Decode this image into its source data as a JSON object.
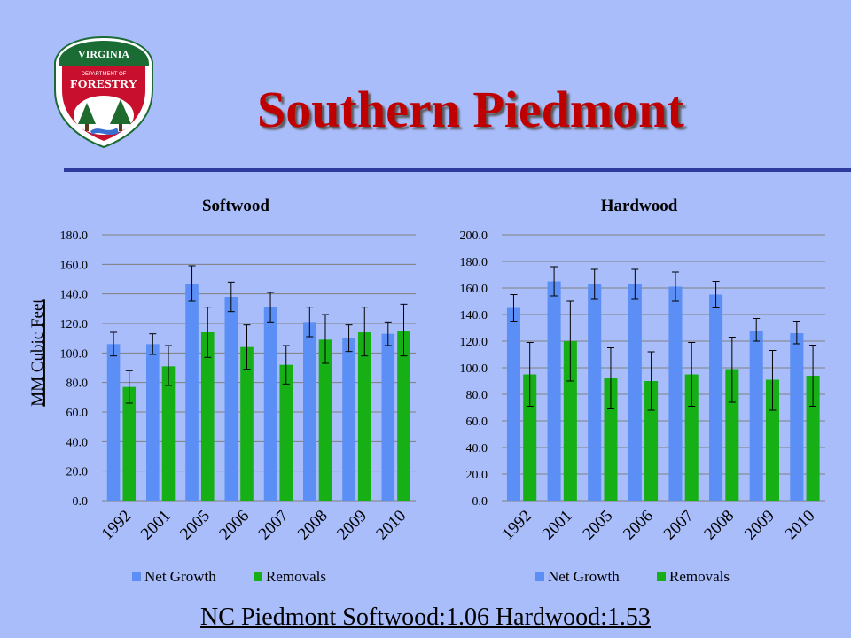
{
  "slide": {
    "title": "Southern Piedmont",
    "footer": "NC Piedmont  Softwood:1.06 Hardwood:1.53"
  },
  "logo": {
    "top_text": "VIRGINIA",
    "mid_text": "DEPARTMENT OF",
    "main_text": "FORESTRY",
    "colors": {
      "shield": "#c8102e",
      "band": "#1b6b35",
      "tree": "#1f6b2e",
      "water": "#3a6fd0"
    }
  },
  "colors": {
    "background": "#a9bdfb",
    "title": "#c00000",
    "rule": "#2e3a9c",
    "net_growth": "#5b8ff5",
    "removals": "#16b016",
    "gridline": "#7f7f7f"
  },
  "chart_data": [
    {
      "type": "bar",
      "title": "Softwood",
      "ylabel": "MM Cubic Feet",
      "xlabel": "",
      "ylim": [
        0,
        180
      ],
      "ytick_step": 20,
      "ytick_labels": [
        "0.0",
        "20.0",
        "40.0",
        "60.0",
        "80.0",
        "100.0",
        "120.0",
        "140.0",
        "160.0",
        "180.0"
      ],
      "grid": true,
      "legend": "bottom",
      "categories": [
        "1992",
        "2001",
        "2005",
        "2006",
        "2007",
        "2008",
        "2009",
        "2010"
      ],
      "series": [
        {
          "name": "Net Growth",
          "values": [
            106,
            106,
            147,
            138,
            131,
            121,
            110,
            113
          ],
          "error_low": [
            98,
            99,
            135,
            128,
            121,
            111,
            101,
            105
          ],
          "error_high": [
            114,
            113,
            159,
            148,
            141,
            131,
            119,
            121
          ]
        },
        {
          "name": "Removals",
          "values": [
            77,
            91,
            114,
            104,
            92,
            109,
            114,
            115
          ],
          "error_low": [
            66,
            78,
            97,
            89,
            79,
            93,
            98,
            98
          ],
          "error_high": [
            88,
            105,
            131,
            119,
            105,
            126,
            131,
            133
          ]
        }
      ]
    },
    {
      "type": "bar",
      "title": "Hardwood",
      "ylabel": "",
      "xlabel": "",
      "ylim": [
        0,
        200
      ],
      "ytick_step": 20,
      "ytick_labels": [
        "0.0",
        "20.0",
        "40.0",
        "60.0",
        "80.0",
        "100.0",
        "120.0",
        "140.0",
        "160.0",
        "180.0",
        "200.0"
      ],
      "grid": true,
      "legend": "bottom",
      "categories": [
        "1992",
        "2001",
        "2005",
        "2006",
        "2007",
        "2008",
        "2009",
        "2010"
      ],
      "series": [
        {
          "name": "Net Growth",
          "values": [
            145,
            165,
            163,
            163,
            161,
            155,
            128,
            126
          ],
          "error_low": [
            135,
            154,
            152,
            152,
            150,
            145,
            120,
            118
          ],
          "error_high": [
            155,
            176,
            174,
            174,
            172,
            165,
            137,
            135
          ]
        },
        {
          "name": "Removals",
          "values": [
            95,
            120,
            92,
            90,
            95,
            99,
            91,
            94
          ],
          "error_low": [
            71,
            90,
            69,
            68,
            71,
            74,
            68,
            71
          ],
          "error_high": [
            119,
            150,
            115,
            112,
            119,
            123,
            113,
            117
          ]
        }
      ]
    }
  ]
}
